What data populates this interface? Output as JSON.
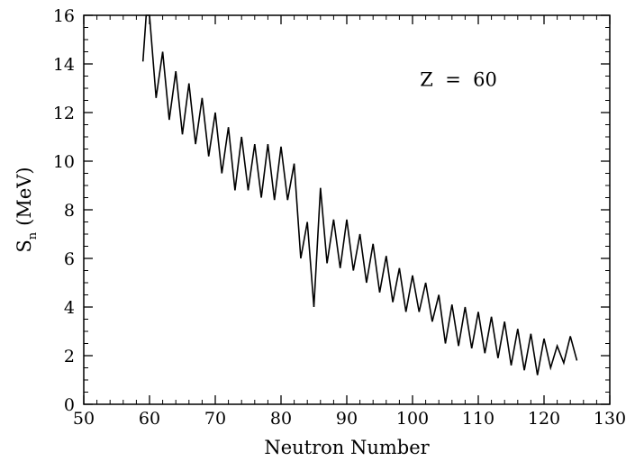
{
  "chart_data": {
    "type": "line",
    "title": "",
    "xlabel": "Neutron Number",
    "ylabel_main": "S",
    "ylabel_sub": "n",
    "ylabel_units": "(MeV)",
    "xlim": [
      50,
      130
    ],
    "ylim": [
      0,
      16
    ],
    "x_ticks": [
      50,
      60,
      70,
      80,
      90,
      100,
      110,
      120,
      130
    ],
    "y_ticks": [
      0,
      2,
      4,
      6,
      8,
      10,
      12,
      14,
      16
    ],
    "x_minor_step": 2,
    "y_minor_step": 0.5,
    "grid": false,
    "annotation": {
      "text": "Z  =  60",
      "x": 107,
      "y": 13.1
    },
    "series": [
      {
        "color": "#000000",
        "points": [
          [
            59,
            14.1
          ],
          [
            59.5,
            16.0
          ],
          [
            60,
            16.0
          ],
          [
            61,
            12.6
          ],
          [
            62,
            14.5
          ],
          [
            63,
            11.7
          ],
          [
            64,
            13.7
          ],
          [
            65,
            11.1
          ],
          [
            66,
            13.2
          ],
          [
            67,
            10.7
          ],
          [
            68,
            12.6
          ],
          [
            69,
            10.2
          ],
          [
            70,
            12.0
          ],
          [
            71,
            9.5
          ],
          [
            72,
            11.4
          ],
          [
            73,
            8.8
          ],
          [
            74,
            11.0
          ],
          [
            75,
            8.8
          ],
          [
            76,
            10.7
          ],
          [
            77,
            8.5
          ],
          [
            78,
            10.7
          ],
          [
            79,
            8.4
          ],
          [
            80,
            10.6
          ],
          [
            81,
            8.4
          ],
          [
            82,
            9.9
          ],
          [
            83,
            6.0
          ],
          [
            84,
            7.5
          ],
          [
            85,
            4.0
          ],
          [
            86,
            8.9
          ],
          [
            87,
            5.8
          ],
          [
            88,
            7.6
          ],
          [
            89,
            5.6
          ],
          [
            90,
            7.6
          ],
          [
            91,
            5.5
          ],
          [
            92,
            7.0
          ],
          [
            93,
            5.0
          ],
          [
            94,
            6.6
          ],
          [
            95,
            4.6
          ],
          [
            96,
            6.1
          ],
          [
            97,
            4.2
          ],
          [
            98,
            5.6
          ],
          [
            99,
            3.8
          ],
          [
            100,
            5.3
          ],
          [
            101,
            3.8
          ],
          [
            102,
            5.0
          ],
          [
            103,
            3.4
          ],
          [
            104,
            4.5
          ],
          [
            105,
            2.5
          ],
          [
            106,
            4.1
          ],
          [
            107,
            2.4
          ],
          [
            108,
            4.0
          ],
          [
            109,
            2.3
          ],
          [
            110,
            3.8
          ],
          [
            111,
            2.1
          ],
          [
            112,
            3.6
          ],
          [
            113,
            1.9
          ],
          [
            114,
            3.4
          ],
          [
            115,
            1.6
          ],
          [
            116,
            3.1
          ],
          [
            117,
            1.4
          ],
          [
            118,
            2.9
          ],
          [
            119,
            1.2
          ],
          [
            120,
            2.7
          ],
          [
            121,
            1.5
          ],
          [
            122,
            2.4
          ],
          [
            123,
            1.7
          ],
          [
            124,
            2.8
          ],
          [
            125,
            1.8
          ]
        ]
      }
    ]
  }
}
